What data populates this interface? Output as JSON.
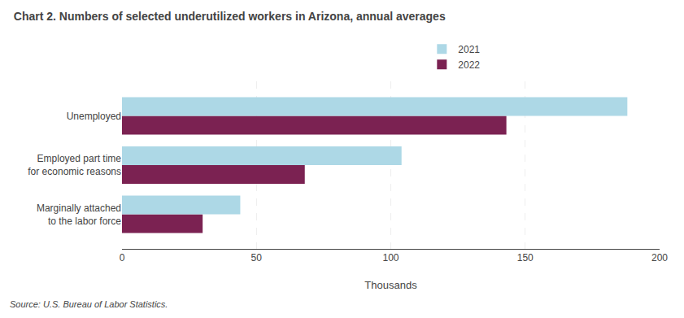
{
  "chart_data": {
    "type": "bar",
    "orientation": "horizontal",
    "title": "Chart 2. Numbers of selected underutilized workers in Arizona, annual averages",
    "source": "Source: U.S. Bureau of Labor Statistics.",
    "categories": [
      "Marginally attached\nto the labor force",
      "Employed part time\nfor economic reasons",
      "Unemployed"
    ],
    "series": [
      {
        "name": "2021",
        "color": "#add8e6",
        "values": [
          44,
          104,
          188
        ]
      },
      {
        "name": "2022",
        "color": "#7b2252",
        "values": [
          30,
          68,
          143
        ]
      }
    ],
    "xlabel": "Thousands",
    "xlim": [
      0,
      200
    ],
    "xticks": [
      0,
      50,
      100,
      150,
      200
    ],
    "grid": true,
    "legend": "top"
  }
}
